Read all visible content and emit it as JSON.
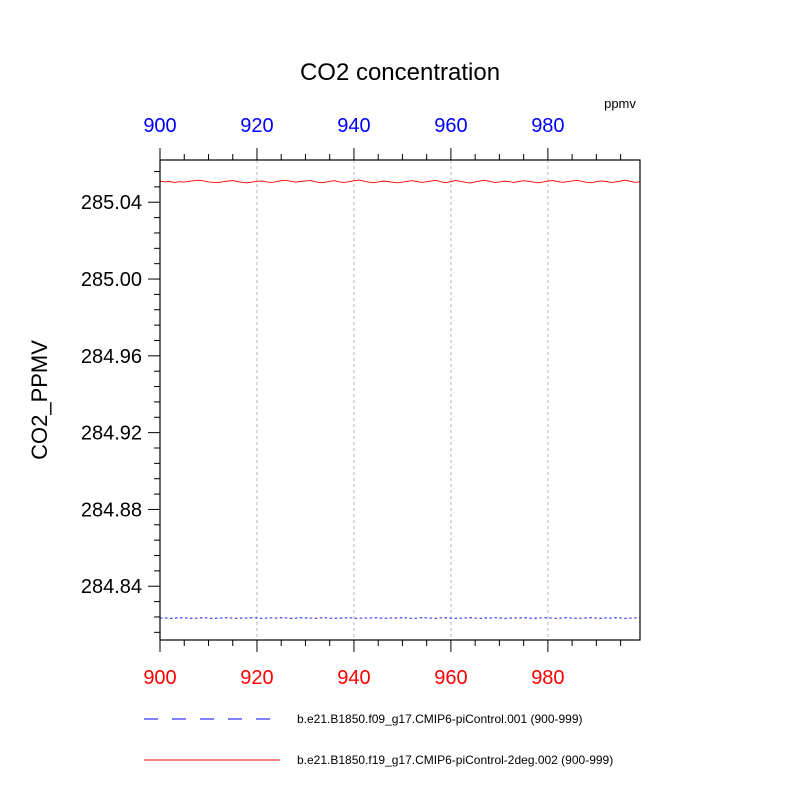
{
  "chart_data": {
    "type": "line",
    "title": "CO2 concentration",
    "units_label": "ppmv",
    "ylabel": "CO2_PPMV",
    "xlim": [
      900,
      999
    ],
    "ylim": [
      284.812,
      285.062
    ],
    "x_ticks": [
      900,
      920,
      940,
      960,
      980
    ],
    "x_tick_labels": [
      "900",
      "920",
      "940",
      "960",
      "980"
    ],
    "y_ticks": [
      284.84,
      284.88,
      284.92,
      284.96,
      285.0,
      285.04
    ],
    "y_tick_labels": [
      "284.84",
      "284.88",
      "284.92",
      "284.96",
      "285.00",
      "285.04"
    ],
    "bottom_tick_color": "#ff0000",
    "top_tick_color": "#0000ff",
    "vertical_grid": true,
    "series": [
      {
        "name": "b.e21.B1850.f09_g17.CMIP6-piControl.001 (900-999)",
        "color": "#0000ff",
        "style": "dashed",
        "x_start": 900,
        "values": [
          284.8234,
          284.8235,
          284.8233,
          284.8234,
          284.8236,
          284.8235,
          284.8234,
          284.8233,
          284.8235,
          284.8236,
          284.8234,
          284.8233,
          284.8234,
          284.8235,
          284.8236,
          284.8234,
          284.8233,
          284.8235,
          284.8234,
          284.8236,
          284.8235,
          284.8233,
          284.8234,
          284.8235,
          284.8234,
          284.8236,
          284.8235,
          284.8233,
          284.8234,
          284.8236,
          284.8235,
          284.8234,
          284.8233,
          284.8235,
          284.8236,
          284.8234,
          284.8233,
          284.8234,
          284.8235,
          284.8236,
          284.8234,
          284.8233,
          284.8235,
          284.8234,
          284.8236,
          284.8235,
          284.8233,
          284.8234,
          284.8235,
          284.8234,
          284.8236,
          284.8235,
          284.8233,
          284.8234,
          284.8236,
          284.8235,
          284.8234,
          284.8233,
          284.8235,
          284.8236,
          284.8234,
          284.8233,
          284.8234,
          284.8235,
          284.8236,
          284.8234,
          284.8233,
          284.8235,
          284.8234,
          284.8236,
          284.8235,
          284.8233,
          284.8234,
          284.8235,
          284.8234,
          284.8236,
          284.8235,
          284.8233,
          284.8234,
          284.8236,
          284.8235,
          284.8234,
          284.8233,
          284.8235,
          284.8236,
          284.8234,
          284.8233,
          284.8234,
          284.8235,
          284.8236,
          284.8234,
          284.8233,
          284.8235,
          284.8234,
          284.8236,
          284.8235,
          284.8233,
          284.8234,
          284.8235,
          284.8236
        ]
      },
      {
        "name": "b.e21.B1850.f19_g17.CMIP6-piControl-2deg.002 (900-999)",
        "color": "#ff0000",
        "style": "solid",
        "x_start": 900,
        "values": [
          285.051,
          285.0506,
          285.0508,
          285.0503,
          285.0507,
          285.0505,
          285.0509,
          285.0512,
          285.0515,
          285.0511,
          285.0506,
          285.0504,
          285.0502,
          285.0507,
          285.051,
          285.0513,
          285.0508,
          285.0503,
          285.0501,
          285.0505,
          285.0509,
          285.0511,
          285.0506,
          285.0503,
          285.0507,
          285.0512,
          285.0514,
          285.0509,
          285.0505,
          285.0508,
          285.0511,
          285.0513,
          285.0507,
          285.0502,
          285.0504,
          285.0509,
          285.0512,
          285.0506,
          285.0503,
          285.0507,
          285.0512,
          285.0516,
          285.051,
          285.0505,
          285.0502,
          285.0506,
          285.051,
          285.0508,
          285.0504,
          285.0501,
          285.0505,
          285.0509,
          285.0512,
          285.0508,
          285.0503,
          285.0507,
          285.0511,
          285.0514,
          285.0506,
          285.0502,
          285.0508,
          285.0513,
          285.0509,
          285.0504,
          285.05,
          285.0506,
          285.0511,
          285.0514,
          285.0509,
          285.0503,
          285.0505,
          285.051,
          285.0507,
          285.0503,
          285.0508,
          285.0512,
          285.0509,
          285.0505,
          285.0501,
          285.0506,
          285.051,
          285.0513,
          285.0508,
          285.0504,
          285.0507,
          285.0511,
          285.0514,
          285.0509,
          285.0504,
          285.0502,
          285.0507,
          285.0511,
          285.0508,
          285.0503,
          285.0506,
          285.051,
          285.0515,
          285.0509,
          285.0503,
          285.0507
        ]
      }
    ]
  }
}
